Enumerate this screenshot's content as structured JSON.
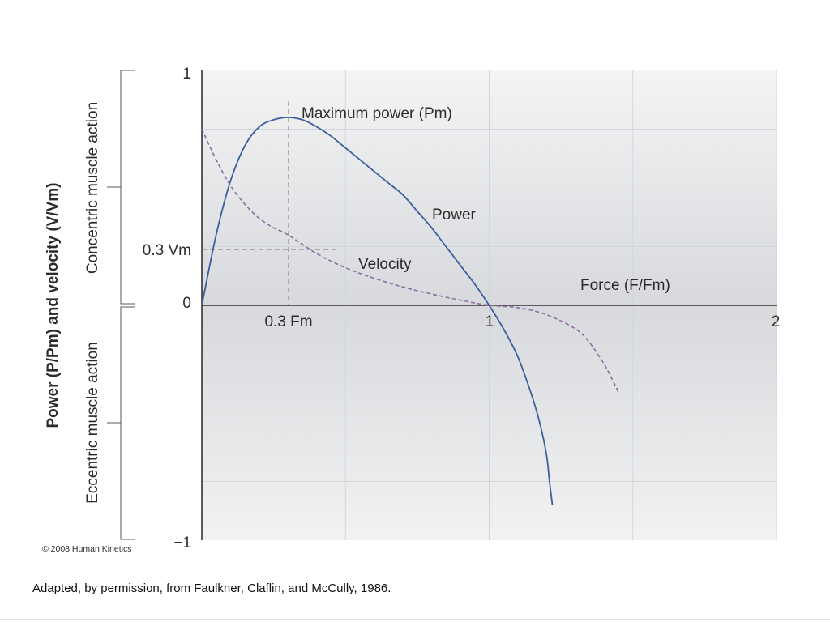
{
  "colors": {
    "power": "#3b5f9e",
    "velocity": "#8e6fa0",
    "axis": "#333333",
    "grid": "#d2d6dc",
    "bg_top": "#f4f4f4",
    "bg_mid": "#d7d9dd",
    "bg_bottom": "#f2f2f2"
  },
  "chart_data": {
    "type": "line",
    "title": "",
    "xlabel": "Force (F/Fm)",
    "ylabel": "Power (P/Pm) and velocity (V/Vm)",
    "xlim": [
      0,
      2
    ],
    "ylim": [
      -1,
      1
    ],
    "x_ticks": [
      "0.3 Fm",
      "1",
      "2"
    ],
    "y_ticks": [
      "1",
      "0.3 Vm",
      "0",
      "−1"
    ],
    "grid": true,
    "regions": [
      "Concentric muscle action",
      "Eccentric muscle action"
    ],
    "series": [
      {
        "name": "Power",
        "x": [
          0,
          0.05,
          0.1,
          0.15,
          0.2,
          0.25,
          0.3,
          0.35,
          0.4,
          0.45,
          0.5,
          0.55,
          0.6,
          0.65,
          0.7,
          0.75,
          0.8,
          0.85,
          0.9,
          0.95,
          1.0,
          1.05,
          1.1,
          1.15,
          1.18,
          1.2,
          1.21,
          1.22
        ],
        "y": [
          0,
          0.3,
          0.53,
          0.68,
          0.76,
          0.79,
          0.8,
          0.79,
          0.76,
          0.72,
          0.67,
          0.62,
          0.57,
          0.52,
          0.47,
          0.4,
          0.33,
          0.25,
          0.17,
          0.09,
          0,
          -0.1,
          -0.22,
          -0.39,
          -0.52,
          -0.64,
          -0.75,
          -0.85
        ]
      },
      {
        "name": "Velocity",
        "x": [
          0,
          0.05,
          0.1,
          0.15,
          0.2,
          0.25,
          0.3,
          0.4,
          0.5,
          0.6,
          0.7,
          0.8,
          0.9,
          1.0,
          1.1,
          1.2,
          1.3,
          1.35,
          1.4,
          1.43,
          1.45
        ],
        "y": [
          0.75,
          0.62,
          0.51,
          0.43,
          0.37,
          0.33,
          0.3,
          0.22,
          0.16,
          0.115,
          0.078,
          0.048,
          0.022,
          0,
          -0.01,
          -0.04,
          -0.1,
          -0.16,
          -0.25,
          -0.32,
          -0.37
        ]
      }
    ],
    "annotations": [
      "Maximum power (Pm)",
      "Power",
      "Velocity",
      "Force (F/Fm)",
      "0.3 Vm",
      "0.3 Fm"
    ]
  },
  "copyright": "© 2008 Human Kinetics",
  "caption": "Adapted, by permission, from Faulkner, Claflin, and McCully, 1986."
}
